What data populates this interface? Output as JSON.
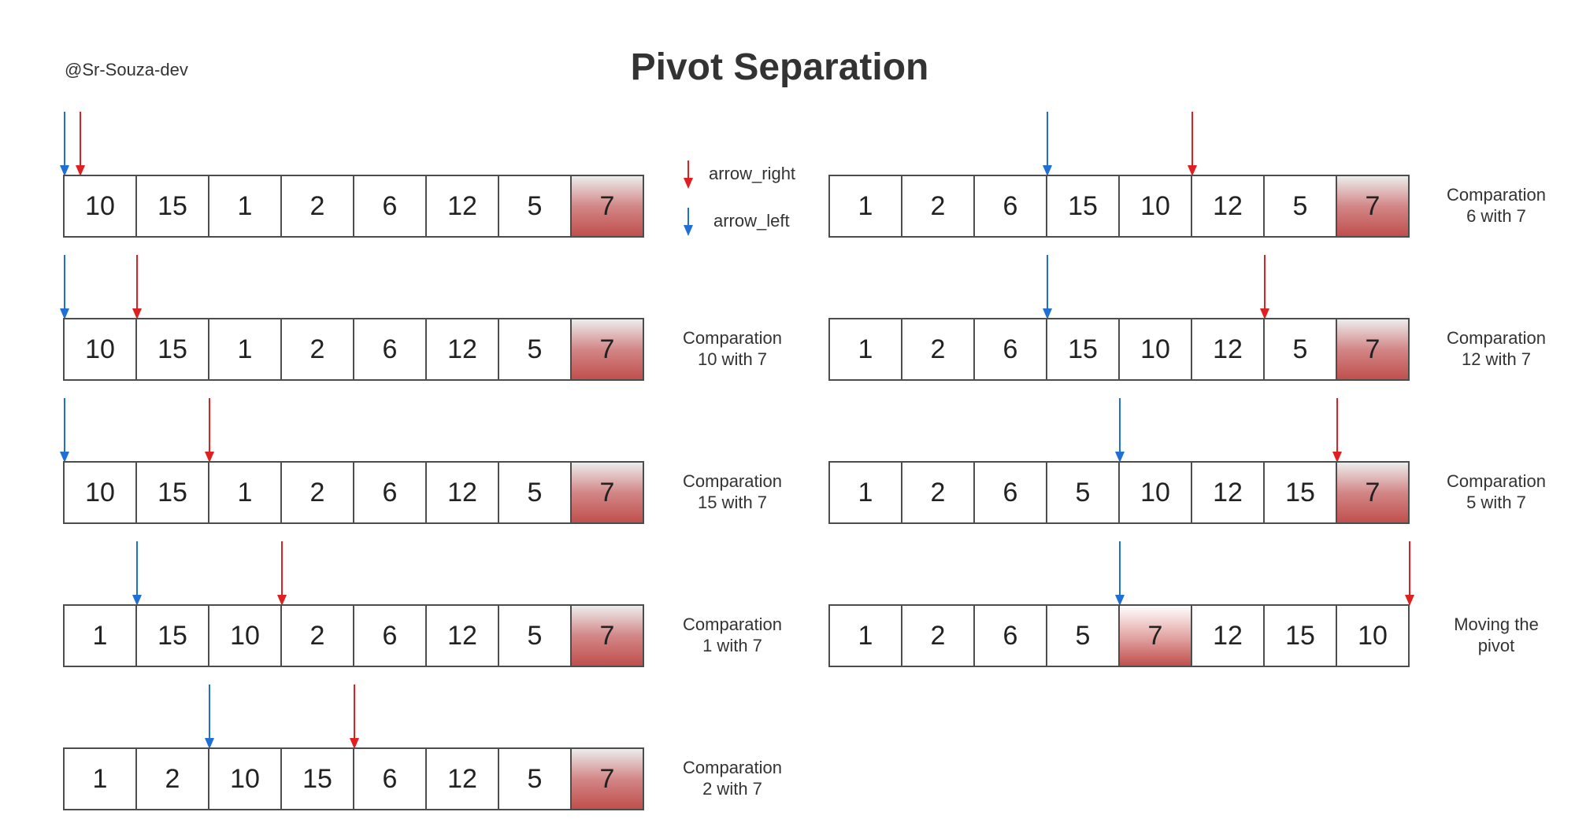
{
  "title": "Pivot Separation",
  "author": "@Sr-Souza-dev",
  "colors": {
    "arrow_right": "#e02020",
    "arrow_left": "#1f6fd6",
    "pivot": "#c0504d",
    "border": "#4d4d4d"
  },
  "legend": {
    "arrow_right_label": "arrow_right",
    "arrow_left_label": "arrow_left"
  },
  "steps": [
    {
      "values": [
        "10",
        "15",
        "1",
        "2",
        "6",
        "12",
        "5",
        "7"
      ],
      "pivot_index": 7,
      "arrow_left_index": 0,
      "arrow_left_pos": "left-edge",
      "arrow_right_index": 0,
      "arrow_right_pos": "near-left",
      "caption": [
        "",
        ""
      ]
    },
    {
      "values": [
        "10",
        "15",
        "1",
        "2",
        "6",
        "12",
        "5",
        "7"
      ],
      "pivot_index": 7,
      "arrow_left_index": 0,
      "arrow_left_pos": "left-edge",
      "arrow_right_index": 1,
      "arrow_right_pos": "left-edge",
      "caption": [
        "Comparation",
        "10 with 7"
      ]
    },
    {
      "values": [
        "10",
        "15",
        "1",
        "2",
        "6",
        "12",
        "5",
        "7"
      ],
      "pivot_index": 7,
      "arrow_left_index": 0,
      "arrow_left_pos": "left-edge",
      "arrow_right_index": 2,
      "arrow_right_pos": "left-edge",
      "caption": [
        "Comparation",
        "15 with 7"
      ]
    },
    {
      "values": [
        "1",
        "15",
        "10",
        "2",
        "6",
        "12",
        "5",
        "7"
      ],
      "pivot_index": 7,
      "arrow_left_index": 1,
      "arrow_left_pos": "left-edge",
      "arrow_right_index": 3,
      "arrow_right_pos": "left-edge",
      "caption": [
        "Comparation",
        "1 with 7"
      ]
    },
    {
      "values": [
        "1",
        "2",
        "10",
        "15",
        "6",
        "12",
        "5",
        "7"
      ],
      "pivot_index": 7,
      "arrow_left_index": 2,
      "arrow_left_pos": "left-edge",
      "arrow_right_index": 4,
      "arrow_right_pos": "left-edge",
      "caption": [
        "Comparation",
        "2 with 7"
      ]
    },
    {
      "values": [
        "1",
        "2",
        "6",
        "15",
        "10",
        "12",
        "5",
        "7"
      ],
      "pivot_index": 7,
      "arrow_left_index": 3,
      "arrow_left_pos": "left-edge",
      "arrow_right_index": 5,
      "arrow_right_pos": "left-edge",
      "caption": [
        "Comparation",
        "6 with 7"
      ]
    },
    {
      "values": [
        "1",
        "2",
        "6",
        "15",
        "10",
        "12",
        "5",
        "7"
      ],
      "pivot_index": 7,
      "arrow_left_index": 3,
      "arrow_left_pos": "left-edge",
      "arrow_right_index": 6,
      "arrow_right_pos": "left-edge",
      "caption": [
        "Comparation",
        "12 with 7"
      ]
    },
    {
      "values": [
        "1",
        "2",
        "6",
        "5",
        "10",
        "12",
        "15",
        "7"
      ],
      "pivot_index": 7,
      "arrow_left_index": 4,
      "arrow_left_pos": "left-edge",
      "arrow_right_index": 7,
      "arrow_right_pos": "left-edge",
      "caption": [
        "Comparation",
        "5 with 7"
      ]
    },
    {
      "values": [
        "1",
        "2",
        "6",
        "5",
        "7",
        "12",
        "15",
        "10"
      ],
      "pivot_index": 4,
      "arrow_left_index": 4,
      "arrow_left_pos": "left-edge",
      "arrow_right_index": 8,
      "arrow_right_pos": "left-edge",
      "caption": [
        "Moving the",
        "pivot"
      ]
    }
  ]
}
